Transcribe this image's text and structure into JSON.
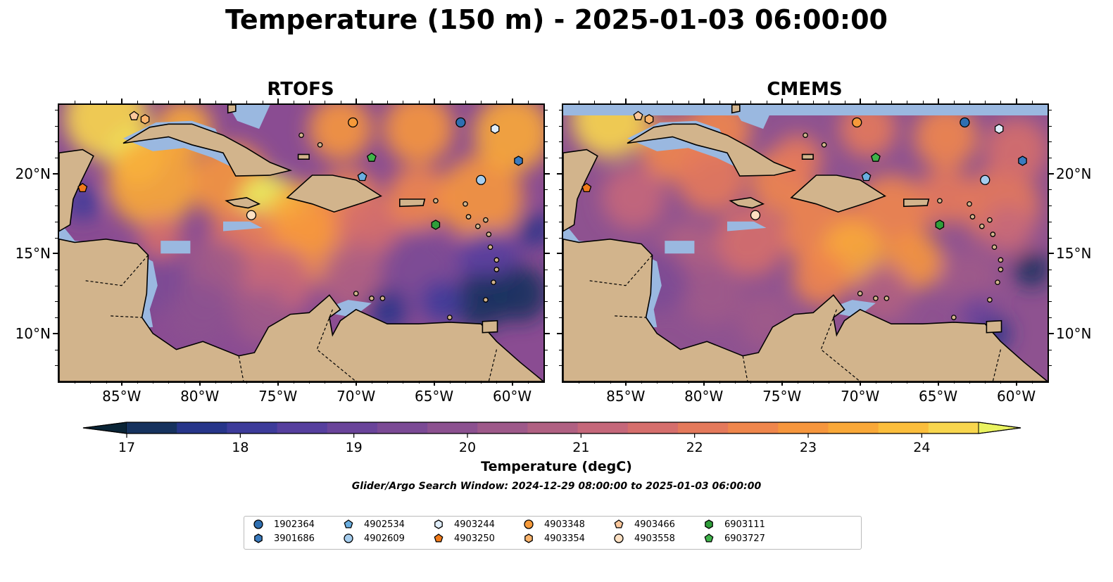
{
  "title": "Temperature (150 m) - 2025-01-03 06:00:00",
  "panels": [
    {
      "title": "RTOFS"
    },
    {
      "title": "CMEMS"
    }
  ],
  "lon_ticks": [
    "85°W",
    "80°W",
    "75°W",
    "70°W",
    "65°W",
    "60°W"
  ],
  "lat_ticks": [
    "20°N",
    "15°N",
    "10°N"
  ],
  "map_extent": {
    "lon": [
      -89,
      -58
    ],
    "lat": [
      7.0,
      24.3
    ]
  },
  "colorbar": {
    "label": "Temperature (degC)",
    "ticks": [
      "17",
      "18",
      "19",
      "20",
      "21",
      "22",
      "23",
      "24"
    ],
    "range": [
      17,
      24.5
    ],
    "colors": [
      "#0a2436",
      "#16325e",
      "#27358a",
      "#3d3b9a",
      "#563f9e",
      "#6a449a",
      "#7b4a95",
      "#8c5190",
      "#9e598a",
      "#b06082",
      "#c5677a",
      "#d56e6c",
      "#e4795b",
      "#ef864c",
      "#f6963d",
      "#f9a838",
      "#fbbe3c",
      "#f8d64e",
      "#eaf360"
    ]
  },
  "search_window": "Glider/Argo Search Window: 2024-12-29 08:00:00 to 2025-01-03 06:00:00",
  "legend": [
    {
      "id": "1902364",
      "marker": "circle",
      "color": "#2f6fb1"
    },
    {
      "id": "3901686",
      "marker": "hexagon",
      "color": "#3a7bbf"
    },
    {
      "id": "4902534",
      "marker": "pentagon",
      "color": "#6aaee0"
    },
    {
      "id": "4902609",
      "marker": "circle",
      "color": "#a5cdee"
    },
    {
      "id": "4903244",
      "marker": "hexagon",
      "color": "#e0eefb"
    },
    {
      "id": "4903250",
      "marker": "pentagon",
      "color": "#f07a1a"
    },
    {
      "id": "4903348",
      "marker": "circle",
      "color": "#f69a3a"
    },
    {
      "id": "4903354",
      "marker": "hexagon",
      "color": "#fbb46c"
    },
    {
      "id": "4903466",
      "marker": "pentagon",
      "color": "#fcc89c"
    },
    {
      "id": "4903558",
      "marker": "circle",
      "color": "#fde0c2"
    },
    {
      "id": "6903111",
      "marker": "hexagon",
      "color": "#2f9e3a"
    },
    {
      "id": "6903727",
      "marker": "pentagon",
      "color": "#3fb34a"
    }
  ],
  "floats": [
    {
      "id": "1902364",
      "lon": -63.3,
      "lat": 23.2
    },
    {
      "id": "3901686",
      "lon": -59.6,
      "lat": 20.8
    },
    {
      "id": "4902534",
      "lon": -69.6,
      "lat": 19.8
    },
    {
      "id": "4902609",
      "lon": -62.0,
      "lat": 19.6
    },
    {
      "id": "4903244",
      "lon": -61.1,
      "lat": 22.8
    },
    {
      "id": "4903250",
      "lon": -87.5,
      "lat": 19.1
    },
    {
      "id": "4903348",
      "lon": -70.2,
      "lat": 23.2
    },
    {
      "id": "4903354",
      "lon": -83.5,
      "lat": 23.4
    },
    {
      "id": "4903466",
      "lon": -84.2,
      "lat": 23.6
    },
    {
      "id": "4903558",
      "lon": -76.7,
      "lat": 17.4
    },
    {
      "id": "6903111",
      "lon": -64.9,
      "lat": 16.8
    },
    {
      "id": "6903727",
      "lon": -69.0,
      "lat": 21.0
    }
  ]
}
